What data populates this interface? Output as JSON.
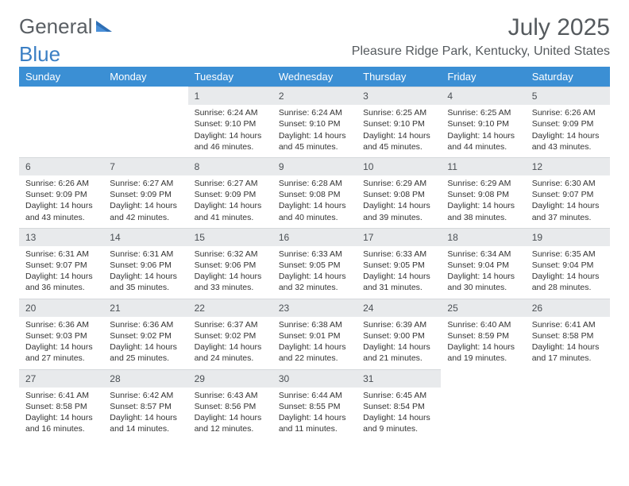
{
  "logo": {
    "text1": "General",
    "text2": "Blue"
  },
  "title": "July 2025",
  "subtitle": "Pleasure Ridge Park, Kentucky, United States",
  "colors": {
    "header_bg": "#3b8fd4",
    "header_text": "#ffffff",
    "daynum_bg": "#e8eaec",
    "text": "#333333",
    "logo_gray": "#5a5f64",
    "logo_blue": "#3b7fc4"
  },
  "weekdays": [
    "Sunday",
    "Monday",
    "Tuesday",
    "Wednesday",
    "Thursday",
    "Friday",
    "Saturday"
  ],
  "weeks": [
    [
      {
        "empty": true
      },
      {
        "empty": true
      },
      {
        "n": "1",
        "sr": "Sunrise: 6:24 AM",
        "ss": "Sunset: 9:10 PM",
        "dl": "Daylight: 14 hours and 46 minutes."
      },
      {
        "n": "2",
        "sr": "Sunrise: 6:24 AM",
        "ss": "Sunset: 9:10 PM",
        "dl": "Daylight: 14 hours and 45 minutes."
      },
      {
        "n": "3",
        "sr": "Sunrise: 6:25 AM",
        "ss": "Sunset: 9:10 PM",
        "dl": "Daylight: 14 hours and 45 minutes."
      },
      {
        "n": "4",
        "sr": "Sunrise: 6:25 AM",
        "ss": "Sunset: 9:10 PM",
        "dl": "Daylight: 14 hours and 44 minutes."
      },
      {
        "n": "5",
        "sr": "Sunrise: 6:26 AM",
        "ss": "Sunset: 9:09 PM",
        "dl": "Daylight: 14 hours and 43 minutes."
      }
    ],
    [
      {
        "n": "6",
        "sr": "Sunrise: 6:26 AM",
        "ss": "Sunset: 9:09 PM",
        "dl": "Daylight: 14 hours and 43 minutes."
      },
      {
        "n": "7",
        "sr": "Sunrise: 6:27 AM",
        "ss": "Sunset: 9:09 PM",
        "dl": "Daylight: 14 hours and 42 minutes."
      },
      {
        "n": "8",
        "sr": "Sunrise: 6:27 AM",
        "ss": "Sunset: 9:09 PM",
        "dl": "Daylight: 14 hours and 41 minutes."
      },
      {
        "n": "9",
        "sr": "Sunrise: 6:28 AM",
        "ss": "Sunset: 9:08 PM",
        "dl": "Daylight: 14 hours and 40 minutes."
      },
      {
        "n": "10",
        "sr": "Sunrise: 6:29 AM",
        "ss": "Sunset: 9:08 PM",
        "dl": "Daylight: 14 hours and 39 minutes."
      },
      {
        "n": "11",
        "sr": "Sunrise: 6:29 AM",
        "ss": "Sunset: 9:08 PM",
        "dl": "Daylight: 14 hours and 38 minutes."
      },
      {
        "n": "12",
        "sr": "Sunrise: 6:30 AM",
        "ss": "Sunset: 9:07 PM",
        "dl": "Daylight: 14 hours and 37 minutes."
      }
    ],
    [
      {
        "n": "13",
        "sr": "Sunrise: 6:31 AM",
        "ss": "Sunset: 9:07 PM",
        "dl": "Daylight: 14 hours and 36 minutes."
      },
      {
        "n": "14",
        "sr": "Sunrise: 6:31 AM",
        "ss": "Sunset: 9:06 PM",
        "dl": "Daylight: 14 hours and 35 minutes."
      },
      {
        "n": "15",
        "sr": "Sunrise: 6:32 AM",
        "ss": "Sunset: 9:06 PM",
        "dl": "Daylight: 14 hours and 33 minutes."
      },
      {
        "n": "16",
        "sr": "Sunrise: 6:33 AM",
        "ss": "Sunset: 9:05 PM",
        "dl": "Daylight: 14 hours and 32 minutes."
      },
      {
        "n": "17",
        "sr": "Sunrise: 6:33 AM",
        "ss": "Sunset: 9:05 PM",
        "dl": "Daylight: 14 hours and 31 minutes."
      },
      {
        "n": "18",
        "sr": "Sunrise: 6:34 AM",
        "ss": "Sunset: 9:04 PM",
        "dl": "Daylight: 14 hours and 30 minutes."
      },
      {
        "n": "19",
        "sr": "Sunrise: 6:35 AM",
        "ss": "Sunset: 9:04 PM",
        "dl": "Daylight: 14 hours and 28 minutes."
      }
    ],
    [
      {
        "n": "20",
        "sr": "Sunrise: 6:36 AM",
        "ss": "Sunset: 9:03 PM",
        "dl": "Daylight: 14 hours and 27 minutes."
      },
      {
        "n": "21",
        "sr": "Sunrise: 6:36 AM",
        "ss": "Sunset: 9:02 PM",
        "dl": "Daylight: 14 hours and 25 minutes."
      },
      {
        "n": "22",
        "sr": "Sunrise: 6:37 AM",
        "ss": "Sunset: 9:02 PM",
        "dl": "Daylight: 14 hours and 24 minutes."
      },
      {
        "n": "23",
        "sr": "Sunrise: 6:38 AM",
        "ss": "Sunset: 9:01 PM",
        "dl": "Daylight: 14 hours and 22 minutes."
      },
      {
        "n": "24",
        "sr": "Sunrise: 6:39 AM",
        "ss": "Sunset: 9:00 PM",
        "dl": "Daylight: 14 hours and 21 minutes."
      },
      {
        "n": "25",
        "sr": "Sunrise: 6:40 AM",
        "ss": "Sunset: 8:59 PM",
        "dl": "Daylight: 14 hours and 19 minutes."
      },
      {
        "n": "26",
        "sr": "Sunrise: 6:41 AM",
        "ss": "Sunset: 8:58 PM",
        "dl": "Daylight: 14 hours and 17 minutes."
      }
    ],
    [
      {
        "n": "27",
        "sr": "Sunrise: 6:41 AM",
        "ss": "Sunset: 8:58 PM",
        "dl": "Daylight: 14 hours and 16 minutes."
      },
      {
        "n": "28",
        "sr": "Sunrise: 6:42 AM",
        "ss": "Sunset: 8:57 PM",
        "dl": "Daylight: 14 hours and 14 minutes."
      },
      {
        "n": "29",
        "sr": "Sunrise: 6:43 AM",
        "ss": "Sunset: 8:56 PM",
        "dl": "Daylight: 14 hours and 12 minutes."
      },
      {
        "n": "30",
        "sr": "Sunrise: 6:44 AM",
        "ss": "Sunset: 8:55 PM",
        "dl": "Daylight: 14 hours and 11 minutes."
      },
      {
        "n": "31",
        "sr": "Sunrise: 6:45 AM",
        "ss": "Sunset: 8:54 PM",
        "dl": "Daylight: 14 hours and 9 minutes."
      },
      {
        "empty": true
      },
      {
        "empty": true
      }
    ]
  ]
}
